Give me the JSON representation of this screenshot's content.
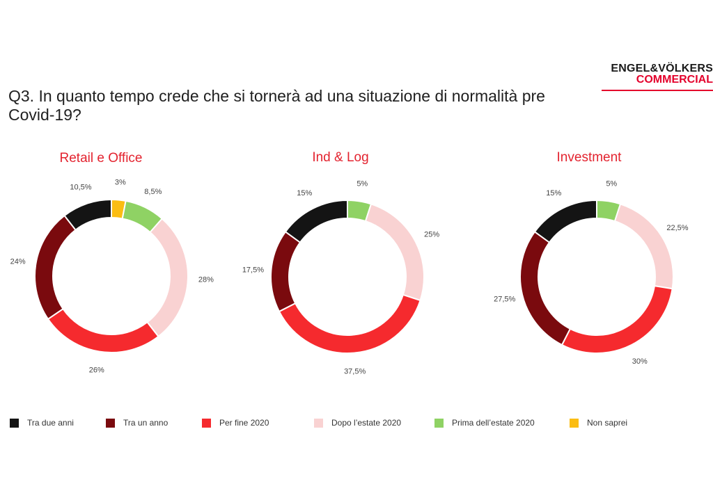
{
  "logo": {
    "line1": "ENGEL&VÖLKERS",
    "line2": "COMMERCIAL"
  },
  "question": "Q3. In quanto tempo crede che si tornerà ad una situazione di normalità pre Covid-19?",
  "colors": {
    "Tra due anni": "#141414",
    "Tra un anno": "#7a0a0e",
    "Per fine 2020": "#f52a2e",
    "Dopo l’estate 2020": "#f9d2d2",
    "Prima dell’estate 2020": "#8fd264",
    "Non saprei": "#fbbd13"
  },
  "legend": [
    "Tra due anni",
    "Tra un anno",
    "Per fine 2020",
    "Dopo l’estate 2020",
    "Prima dell’estate 2020",
    "Non saprei"
  ],
  "chart_data": [
    {
      "type": "pie",
      "title": "Retail e Office",
      "categories": [
        "Non saprei",
        "Prima dell’estate 2020",
        "Dopo l’estate 2020",
        "Per fine 2020",
        "Tra un anno",
        "Tra due anni"
      ],
      "values": [
        3,
        8.5,
        28,
        26,
        24,
        10.5
      ],
      "labels": [
        "3%",
        "8,5%",
        "28%",
        "26%",
        "24%",
        "10,5%"
      ]
    },
    {
      "type": "pie",
      "title": "Ind & Log",
      "categories": [
        "Prima dell’estate 2020",
        "Dopo l’estate 2020",
        "Per fine 2020",
        "Tra un anno",
        "Tra due anni"
      ],
      "values": [
        5,
        25,
        37.5,
        17.5,
        15
      ],
      "labels": [
        "5%",
        "25%",
        "37,5%",
        "17,5%",
        "15%"
      ]
    },
    {
      "type": "pie",
      "title": "Investment",
      "categories": [
        "Prima dell’estate 2020",
        "Dopo l’estate 2020",
        "Per fine 2020",
        "Tra un anno",
        "Tra due anni"
      ],
      "values": [
        5,
        22.5,
        30,
        27.5,
        15
      ],
      "labels": [
        "5%",
        "22,5%",
        "30%",
        "27,5%",
        "15%"
      ]
    }
  ]
}
